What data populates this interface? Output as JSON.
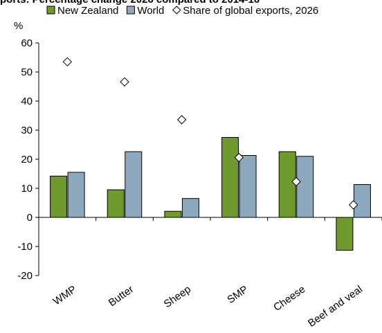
{
  "chart_data": {
    "type": "bar",
    "title": "ports: Percentage change 2026 compared to 2014-16",
    "ylabel": "%",
    "xlabel": "",
    "ylim": [
      -20,
      60
    ],
    "yticks": [
      -20,
      -10,
      0,
      10,
      20,
      30,
      40,
      50,
      60
    ],
    "categories": [
      "WMP",
      "Butter",
      "Sheep",
      "SMP",
      "Cheese",
      "Beef and veal"
    ],
    "series": [
      {
        "name": "New Zealand",
        "kind": "bar",
        "color": "#6e9a2e",
        "values": [
          14.2,
          9.5,
          2.1,
          27.5,
          22.6,
          -11.3
        ]
      },
      {
        "name": "World",
        "kind": "bar",
        "color": "#8ea8bd",
        "values": [
          15.5,
          22.6,
          6.5,
          21.3,
          21.0,
          11.3
        ]
      },
      {
        "name": "Share of global exports, 2026",
        "kind": "marker",
        "marker": "diamond",
        "values": [
          53.5,
          46.6,
          33.6,
          20.6,
          12.3,
          4.3
        ]
      }
    ],
    "legend_position": "top",
    "grid": false
  }
}
